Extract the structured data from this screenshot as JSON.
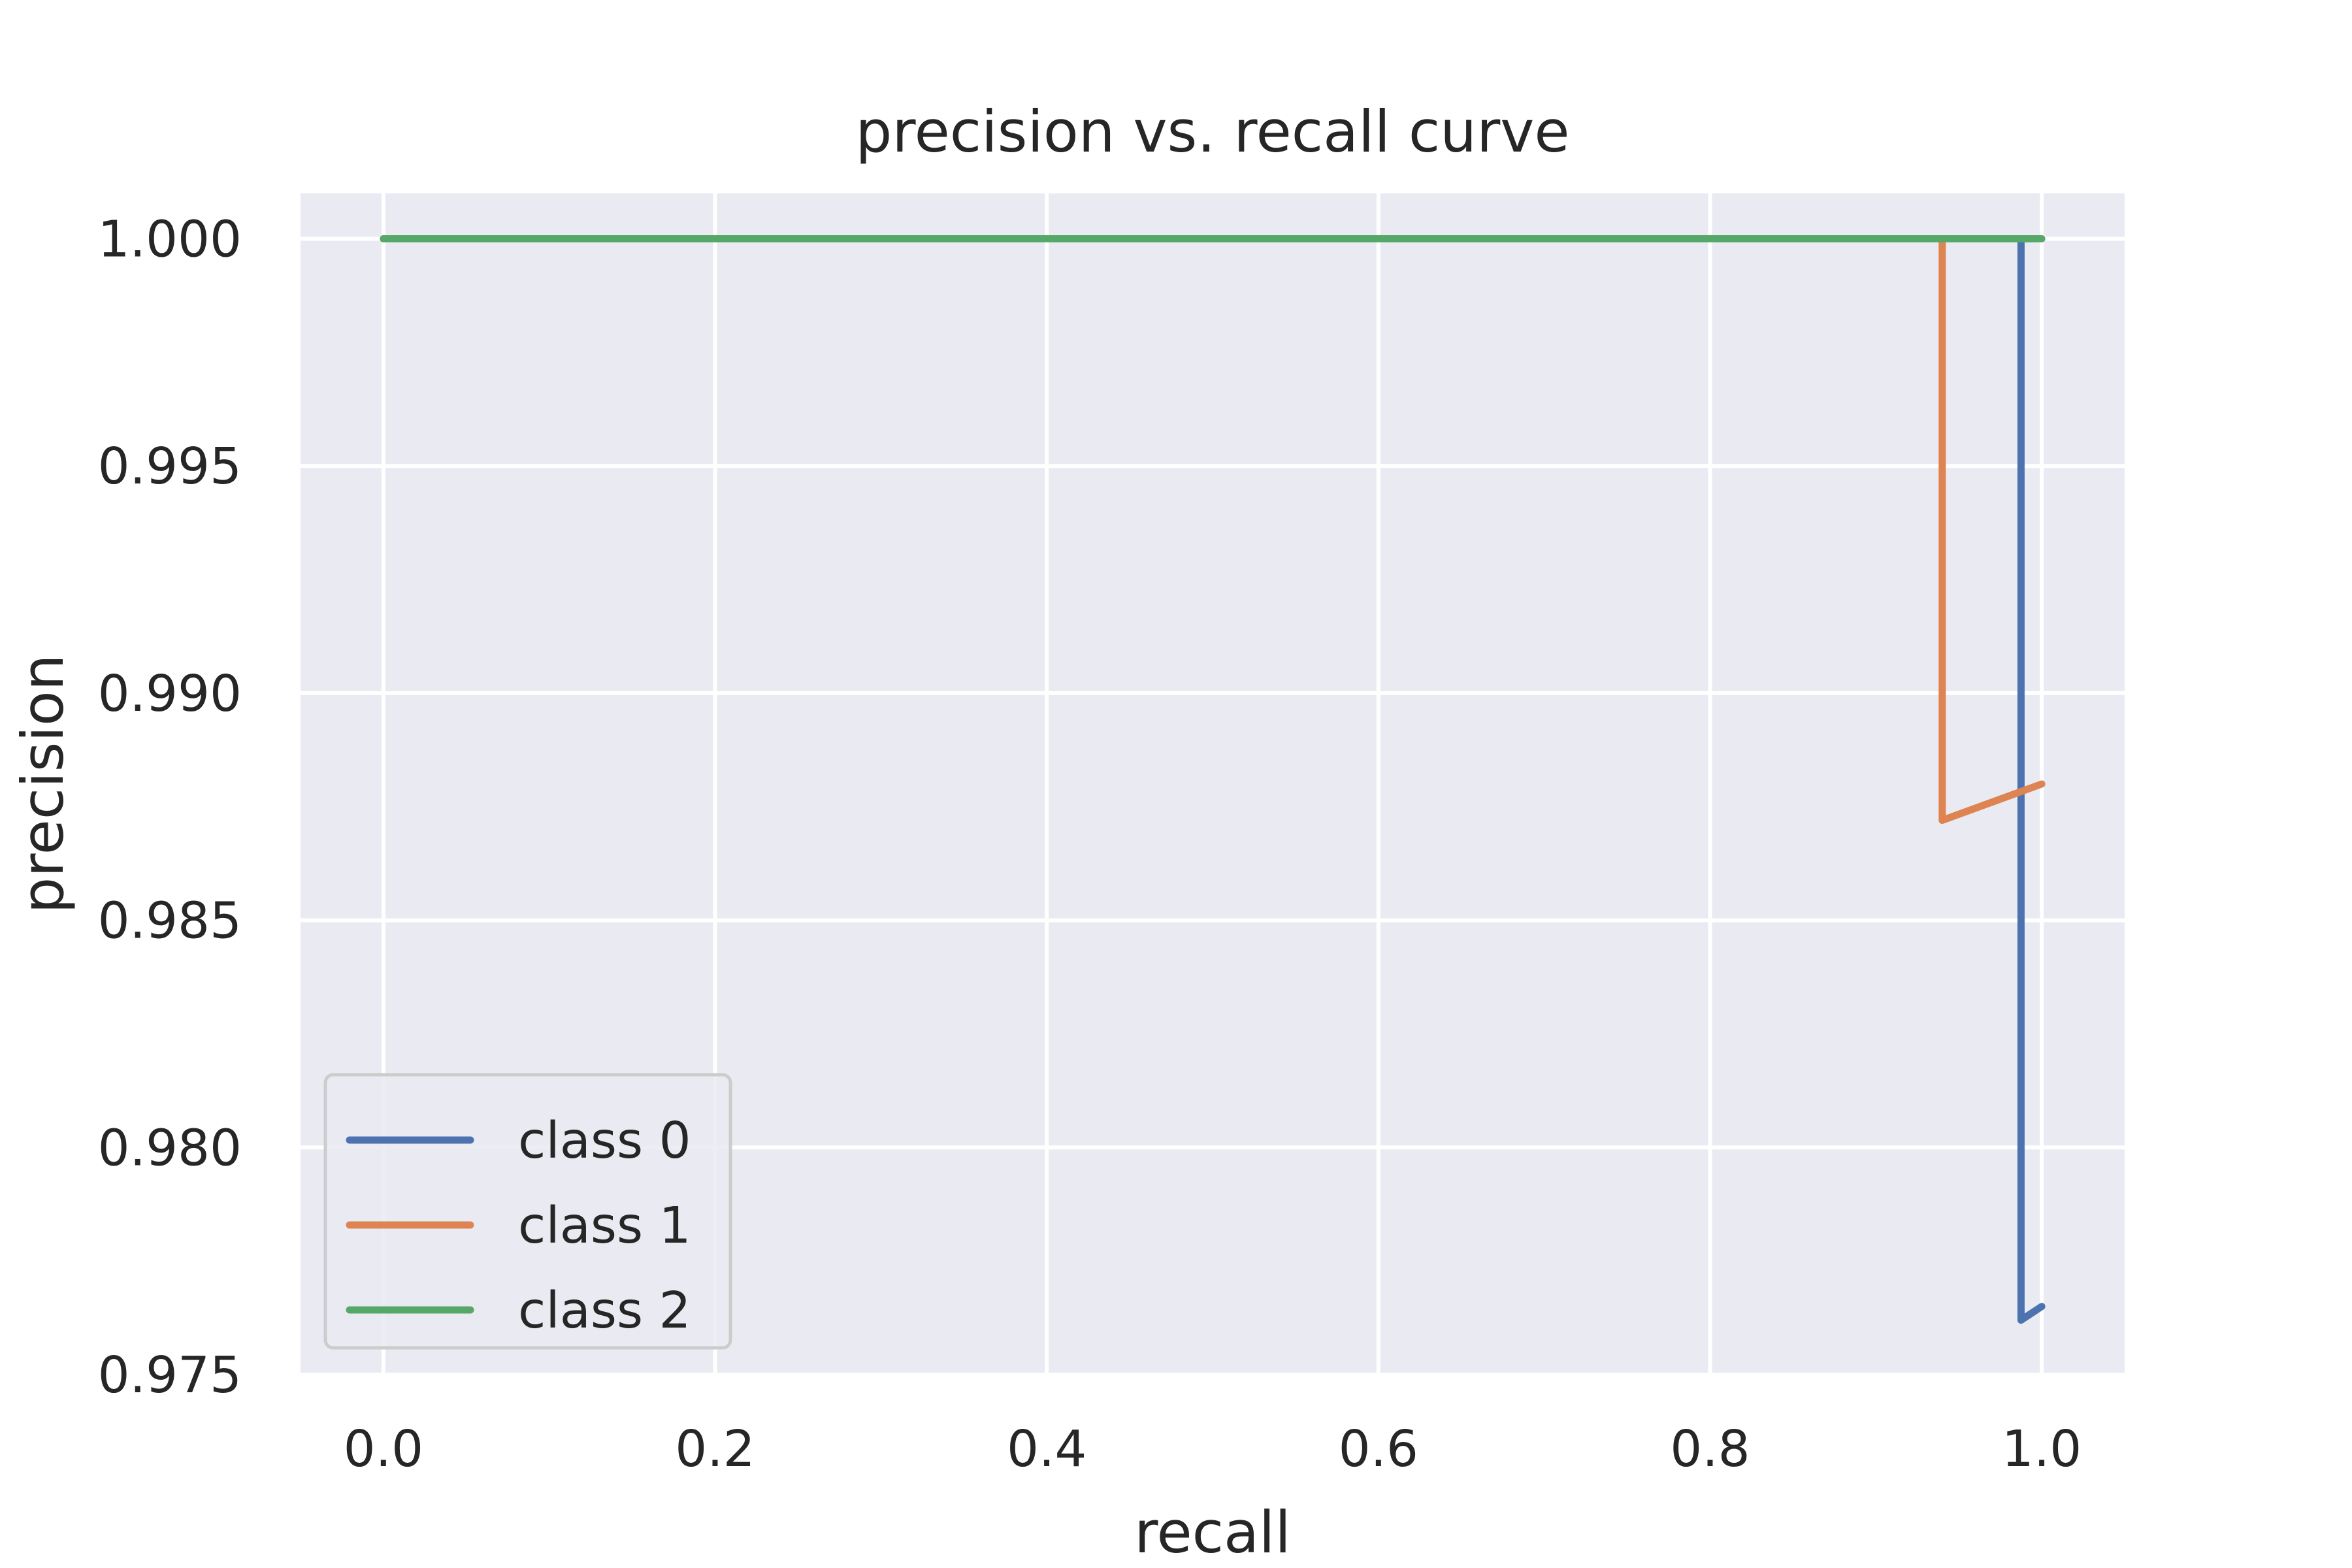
{
  "chart_data": {
    "type": "line",
    "title": "precision vs. recall curve",
    "xlabel": "recall",
    "ylabel": "precision",
    "xlim": [
      -0.05,
      1.05
    ],
    "ylim": [
      0.975,
      1.001
    ],
    "xticks": [
      0.0,
      0.2,
      0.4,
      0.6,
      0.8,
      1.0
    ],
    "xtick_labels": [
      "0.0",
      "0.2",
      "0.4",
      "0.6",
      "0.8",
      "1.0"
    ],
    "yticks": [
      0.975,
      0.98,
      0.985,
      0.99,
      0.995,
      1.0
    ],
    "ytick_labels": [
      "0.975",
      "0.980",
      "0.985",
      "0.990",
      "0.995",
      "1.000"
    ],
    "grid": true,
    "legend_position": "lower-left",
    "background_color": "#eaeaf2",
    "grid_color": "#ffffff",
    "series": [
      {
        "name": "class 0",
        "color": "#4c72b0",
        "x": [
          0.0,
          0.9875,
          0.9875,
          1.0
        ],
        "y": [
          1.0,
          1.0,
          0.9762,
          0.9765
        ]
      },
      {
        "name": "class 1",
        "color": "#dd8452",
        "x": [
          0.0,
          0.94,
          0.94,
          1.0
        ],
        "y": [
          1.0,
          1.0,
          0.9872,
          0.988
        ]
      },
      {
        "name": "class 2",
        "color": "#55a868",
        "x": [
          0.0,
          1.0
        ],
        "y": [
          1.0,
          1.0
        ]
      }
    ]
  }
}
